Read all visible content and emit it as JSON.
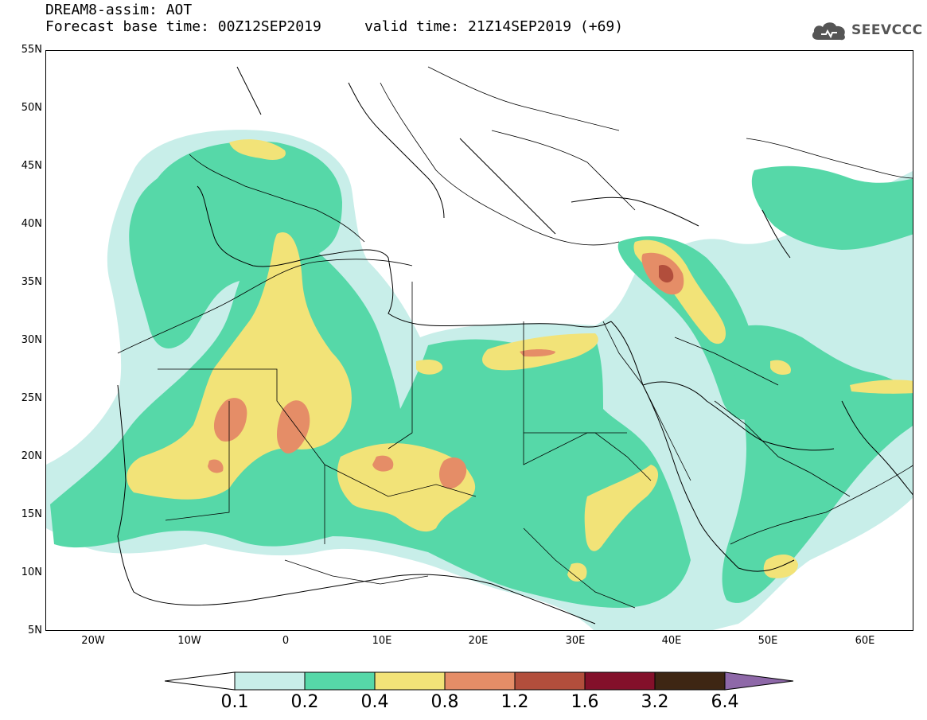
{
  "header": {
    "title_line1": "DREAM8-assim: AOT",
    "title_line2": "Forecast base time: 00Z12SEP2019     valid time: 21Z14SEP2019 (+69)"
  },
  "logo": {
    "text": "SEEVCCC",
    "icon": "cloud-icon"
  },
  "map": {
    "lat_labels": [
      "55N",
      "50N",
      "45N",
      "40N",
      "35N",
      "30N",
      "25N",
      "20N",
      "15N",
      "10N",
      "5N"
    ],
    "lon_labels": [
      "20W",
      "10W",
      "0",
      "10E",
      "20E",
      "30E",
      "40E",
      "50E",
      "60E"
    ]
  },
  "legend": {
    "levels": [
      "0.1",
      "0.2",
      "0.4",
      "0.8",
      "1.2",
      "1.6",
      "3.2",
      "6.4"
    ],
    "colors": {
      "c1": "#c8eee9",
      "c2": "#56d8a8",
      "c3": "#f2e378",
      "c4": "#e58d67",
      "c5": "#b24e3c",
      "c6": "#83102a",
      "c7": "#3e2613",
      "c8": "#8e68a8"
    }
  }
}
